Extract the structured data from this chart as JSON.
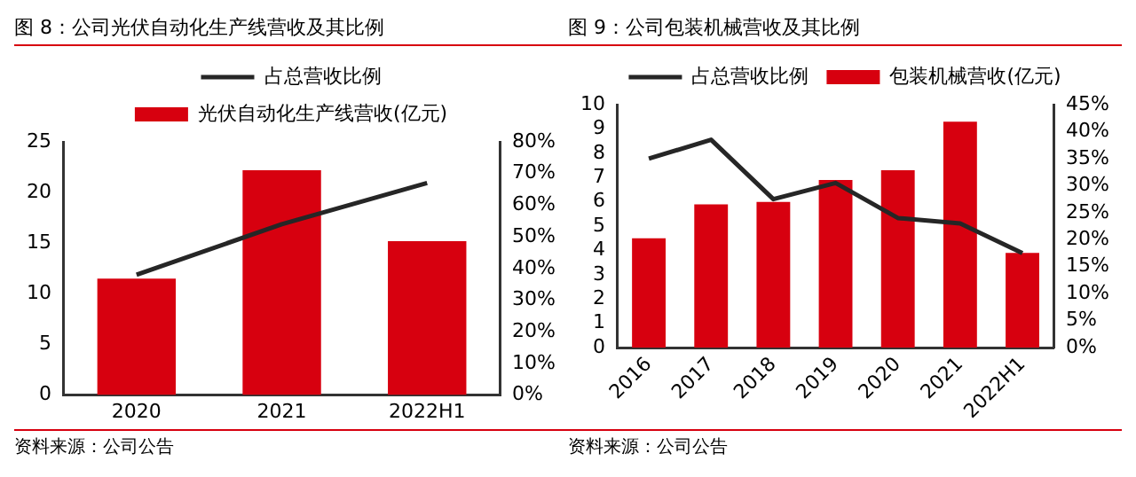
{
  "chart_data": [
    {
      "type": "bar",
      "title": "图 8：公司光伏自动化生产线营收及其比例",
      "categories": [
        "2020",
        "2021",
        "2022H1"
      ],
      "series": [
        {
          "name": "光伏自动化生产线营收(亿元)",
          "color": "#d7000f",
          "values": [
            11.5,
            22.2,
            15.2
          ]
        },
        {
          "name": "占总营收比例",
          "type": "line",
          "axis": "y2",
          "color": "#262626",
          "values": [
            38,
            54,
            67
          ]
        }
      ],
      "ylim": [
        0,
        25
      ],
      "yticks": [
        0,
        5,
        10,
        15,
        20,
        25
      ],
      "y2lim": [
        0,
        80
      ],
      "y2ticks": [
        {
          "value": 0,
          "label": "0%"
        },
        {
          "value": 10,
          "label": "10%"
        },
        {
          "value": 20,
          "label": "20%"
        },
        {
          "value": 30,
          "label": "30%"
        },
        {
          "value": 40,
          "label": "40%"
        },
        {
          "value": 50,
          "label": "50%"
        },
        {
          "value": 60,
          "label": "60%"
        },
        {
          "value": 70,
          "label": "70%"
        },
        {
          "value": 80,
          "label": "80%"
        }
      ],
      "grid": false,
      "legend": "top",
      "marker": "none",
      "annotations": [
        "资料来源：公司公告"
      ]
    },
    {
      "type": "bar",
      "title": "图 9：公司包装机械营收及其比例",
      "categories": [
        "2016",
        "2017",
        "2018",
        "2019",
        "2020",
        "2021",
        "2022H1"
      ],
      "series": [
        {
          "name": "包装机械营收(亿元)",
          "color": "#d7000f",
          "values": [
            4.5,
            5.9,
            6.0,
            6.9,
            7.3,
            9.3,
            3.9
          ]
        },
        {
          "name": "占总营收比例",
          "type": "line",
          "axis": "y2",
          "color": "#262626",
          "values": [
            35,
            38.5,
            27.5,
            30.5,
            24,
            23,
            17.5
          ]
        }
      ],
      "ylim": [
        0,
        10
      ],
      "yticks": [
        0,
        1,
        2,
        3,
        4,
        5,
        6,
        7,
        8,
        9,
        10
      ],
      "y2lim": [
        0,
        45
      ],
      "y2ticks": [
        {
          "value": 0,
          "label": "0%"
        },
        {
          "value": 5,
          "label": "5%"
        },
        {
          "value": 10,
          "label": "10%"
        },
        {
          "value": 15,
          "label": "15%"
        },
        {
          "value": 20,
          "label": "20%"
        },
        {
          "value": 25,
          "label": "25%"
        },
        {
          "value": 30,
          "label": "30%"
        },
        {
          "value": 35,
          "label": "35%"
        },
        {
          "value": 40,
          "label": "40%"
        },
        {
          "value": 45,
          "label": "45%"
        }
      ],
      "grid": false,
      "legend": "top",
      "marker": "none",
      "annotations": [
        "资料来源：公司公告"
      ]
    }
  ]
}
